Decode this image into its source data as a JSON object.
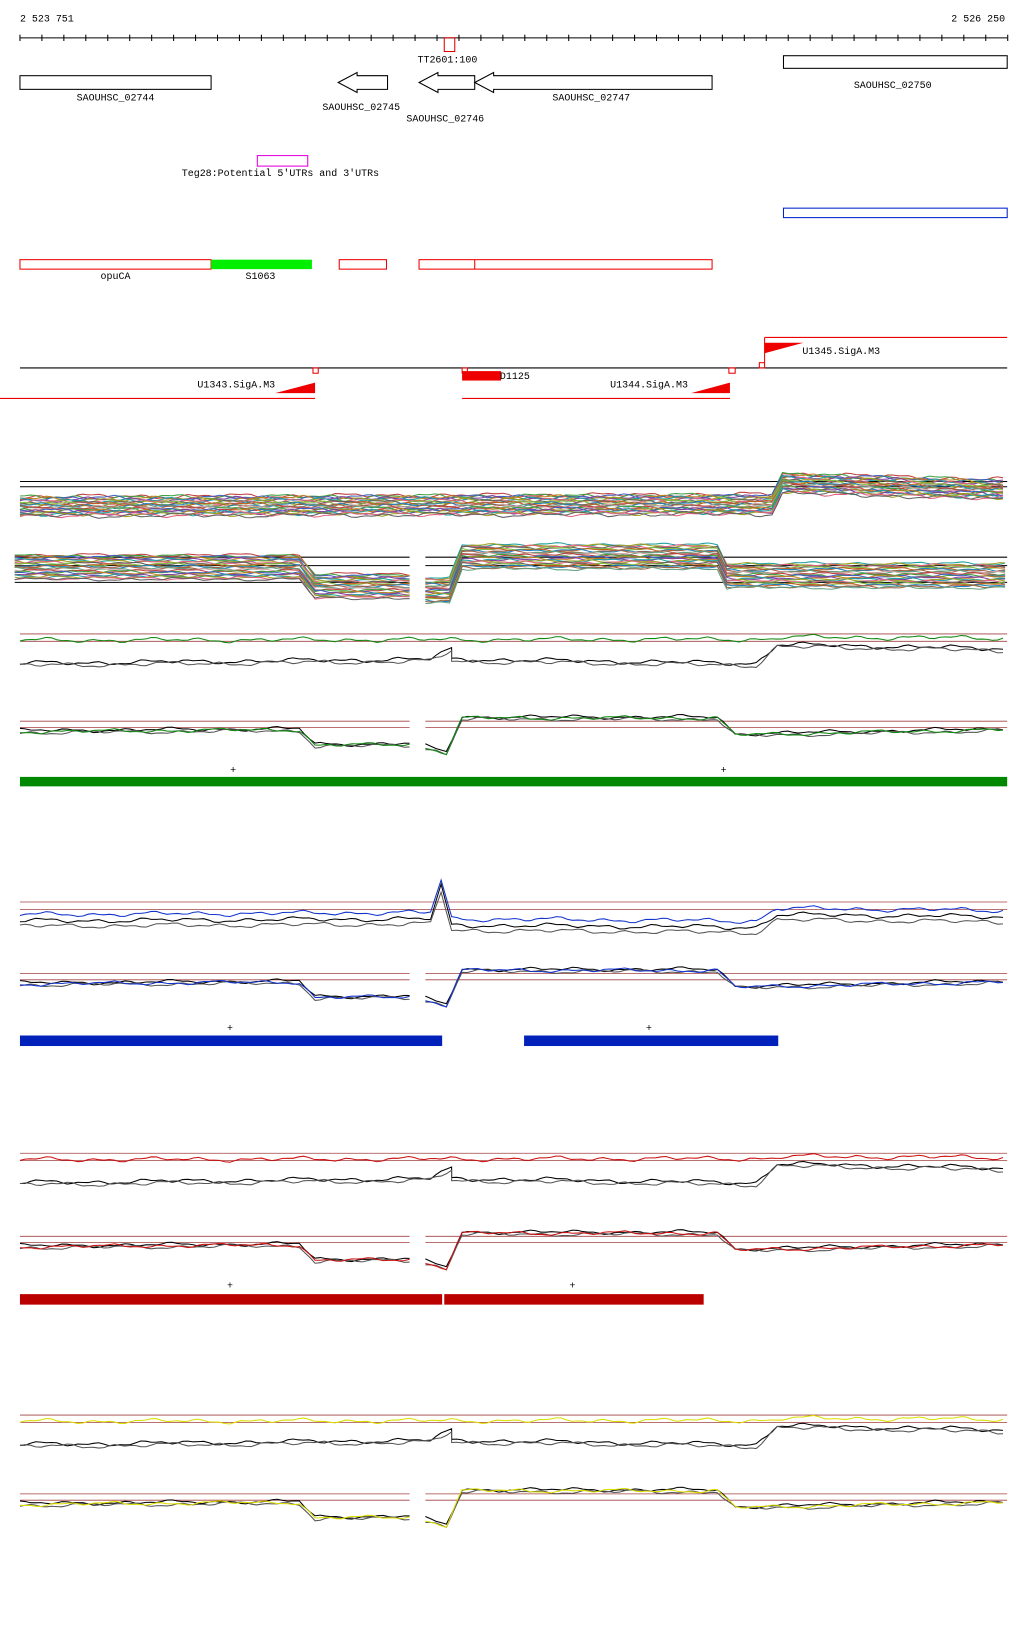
{
  "ruler": {
    "start_label": "2 523 751",
    "end_label": "2 526 250"
  },
  "terminator": "TT2601:100",
  "genes": [
    "SAOUHSC_02744",
    "SAOUHSC_02745",
    "SAOUHSC_02746",
    "SAOUHSC_02747",
    "SAOUHSC_02750"
  ],
  "utr": "Teg28:Potential 5'UTRs and 3'UTRs",
  "operons": [
    "opuCA",
    "S1063"
  ],
  "promoters": [
    "U1343.SigA.M3",
    "U1344.SigA.M3",
    "U1345.SigA.M3"
  ],
  "other_feature": "D1125",
  "strand_marks": {
    "green": [
      "+",
      "+"
    ],
    "blue": [
      "+",
      "+"
    ],
    "red": [
      "+",
      "+"
    ]
  }
}
